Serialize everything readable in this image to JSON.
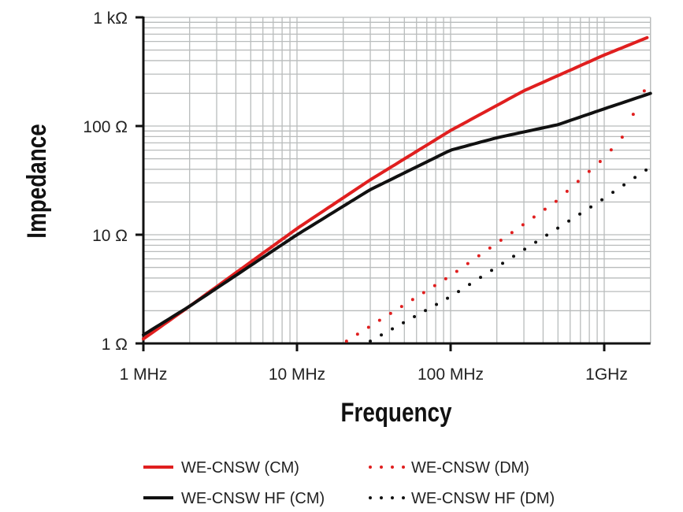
{
  "chart_data": {
    "type": "line",
    "xlabel": "Frequency",
    "ylabel": "Impedance",
    "x_scale": "log",
    "y_scale": "log",
    "x_unit": "MHz",
    "y_unit": "Ohm",
    "xlim": [
      1,
      2000
    ],
    "ylim": [
      1,
      1000
    ],
    "grid": true,
    "legend_position": "bottom",
    "x_ticks": [
      {
        "value": 1,
        "label": "1 MHz"
      },
      {
        "value": 10,
        "label": "10 MHz"
      },
      {
        "value": 100,
        "label": "100 MHz"
      },
      {
        "value": 1000,
        "label": "1GHz"
      }
    ],
    "y_ticks": [
      {
        "value": 1,
        "label": "1 Ω"
      },
      {
        "value": 10,
        "label": "10 Ω"
      },
      {
        "value": 100,
        "label": "100 Ω"
      },
      {
        "value": 1000,
        "label": "1 kΩ"
      }
    ],
    "series": [
      {
        "name": "WE-CNSW (CM)",
        "color": "#e01f1f",
        "style": "solid",
        "x": [
          1,
          2,
          10,
          30,
          100,
          300,
          1000,
          1900
        ],
        "y": [
          1.1,
          2.2,
          11.4,
          32,
          91,
          211,
          450,
          650
        ]
      },
      {
        "name": "WE-CNSW HF (CM)",
        "color": "#111111",
        "style": "solid",
        "x": [
          1,
          2,
          10,
          30,
          100,
          200,
          500,
          1000,
          2000
        ],
        "y": [
          1.2,
          2.2,
          10,
          26,
          60,
          78,
          103,
          144,
          200
        ]
      },
      {
        "name": "WE-CNSW (DM)",
        "color": "#e01f1f",
        "style": "dotted",
        "x": [
          21,
          100,
          480,
          1000,
          1320,
          1850
        ],
        "y": [
          1.05,
          4.2,
          20,
          51,
          80,
          220
        ]
      },
      {
        "name": "WE-CNSW HF (DM)",
        "color": "#111111",
        "style": "dotted",
        "x": [
          30,
          100,
          900,
          2000
        ],
        "y": [
          1.05,
          2.7,
          19.6,
          42
        ]
      }
    ]
  }
}
